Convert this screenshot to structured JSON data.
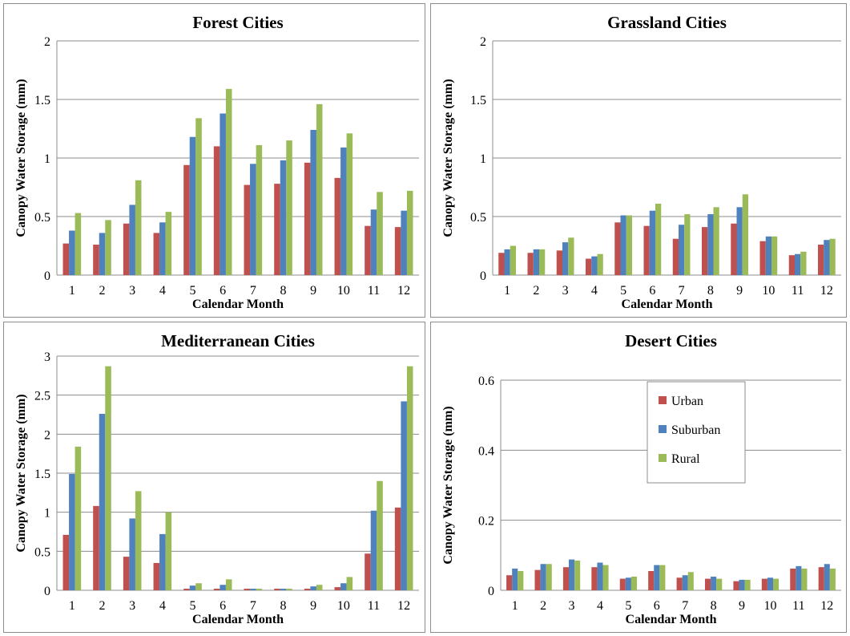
{
  "colors": {
    "urban": "#c0504d",
    "suburban": "#4f81bd",
    "rural": "#9bbb59"
  },
  "legend": [
    {
      "name": "Urban",
      "color": "#c0504d"
    },
    {
      "name": "Suburban",
      "color": "#4f81bd"
    },
    {
      "name": "Rural",
      "color": "#9bbb59"
    }
  ],
  "chart_data": [
    {
      "type": "bar",
      "title": "Forest Cities",
      "xlabel": "Calendar  Month",
      "ylabel": "Canopy  Water Storage (mm)",
      "categories": [
        "1",
        "2",
        "3",
        "4",
        "5",
        "6",
        "7",
        "8",
        "9",
        "10",
        "11",
        "12"
      ],
      "ylim": [
        0,
        2
      ],
      "yticks": [
        "0",
        "0.5",
        "1",
        "1.5",
        "2"
      ],
      "yticks_values": [
        0,
        0.5,
        1,
        1.5,
        2
      ],
      "series": [
        {
          "name": "Urban",
          "values": [
            0.27,
            0.26,
            0.44,
            0.36,
            0.94,
            1.1,
            0.77,
            0.78,
            0.96,
            0.83,
            0.42,
            0.41
          ]
        },
        {
          "name": "Suburban",
          "values": [
            0.38,
            0.36,
            0.6,
            0.45,
            1.18,
            1.38,
            0.95,
            0.98,
            1.24,
            1.09,
            0.56,
            0.55
          ]
        },
        {
          "name": "Rural",
          "values": [
            0.53,
            0.47,
            0.81,
            0.54,
            1.34,
            1.59,
            1.11,
            1.15,
            1.46,
            1.21,
            0.71,
            0.72
          ]
        }
      ],
      "grid": true
    },
    {
      "type": "bar",
      "title": "Grassland Cities",
      "xlabel": "Calendar  Month",
      "ylabel": "Canopy  Water Storage (mm)",
      "categories": [
        "1",
        "2",
        "3",
        "4",
        "5",
        "6",
        "7",
        "8",
        "9",
        "10",
        "11",
        "12"
      ],
      "ylim": [
        0,
        2
      ],
      "yticks": [
        "0",
        "0.5",
        "1",
        "1.5",
        "2"
      ],
      "yticks_values": [
        0,
        0.5,
        1,
        1.5,
        2
      ],
      "series": [
        {
          "name": "Urban",
          "values": [
            0.19,
            0.19,
            0.21,
            0.14,
            0.45,
            0.42,
            0.31,
            0.41,
            0.44,
            0.29,
            0.17,
            0.26
          ]
        },
        {
          "name": "Suburban",
          "values": [
            0.22,
            0.22,
            0.28,
            0.16,
            0.51,
            0.55,
            0.43,
            0.52,
            0.58,
            0.33,
            0.18,
            0.3
          ]
        },
        {
          "name": "Rural",
          "values": [
            0.25,
            0.22,
            0.32,
            0.18,
            0.51,
            0.61,
            0.52,
            0.58,
            0.69,
            0.33,
            0.2,
            0.31
          ]
        }
      ],
      "grid": true
    },
    {
      "type": "bar",
      "title": "Mediterranean Cities",
      "xlabel": "Calendar  Month",
      "ylabel": "Canopy  Water Storage (mm)",
      "categories": [
        "1",
        "2",
        "3",
        "4",
        "5",
        "6",
        "7",
        "8",
        "9",
        "10",
        "11",
        "12"
      ],
      "ylim": [
        0,
        3
      ],
      "yticks": [
        "0",
        "0.5",
        "1",
        "1.5",
        "2",
        "2.5",
        "3"
      ],
      "yticks_values": [
        0,
        0.5,
        1,
        1.5,
        2,
        2.5,
        3
      ],
      "series": [
        {
          "name": "Urban",
          "values": [
            0.71,
            1.08,
            0.43,
            0.35,
            0.02,
            0.02,
            0.02,
            0.02,
            0.02,
            0.04,
            0.47,
            1.06
          ]
        },
        {
          "name": "Suburban",
          "values": [
            1.49,
            2.26,
            0.92,
            0.72,
            0.06,
            0.07,
            0.02,
            0.02,
            0.05,
            0.09,
            1.02,
            2.42
          ]
        },
        {
          "name": "Rural",
          "values": [
            1.84,
            2.87,
            1.27,
            1.0,
            0.09,
            0.14,
            0.02,
            0.02,
            0.07,
            0.17,
            1.4,
            2.87
          ]
        }
      ],
      "grid": true
    },
    {
      "type": "bar",
      "title": "Desert Cities",
      "xlabel": "Calendar  Month",
      "ylabel": "Canopy  Water Storage (mm)",
      "categories": [
        "1",
        "2",
        "3",
        "4",
        "5",
        "6",
        "7",
        "8",
        "9",
        "10",
        "11",
        "12"
      ],
      "ylim": [
        0,
        0.6
      ],
      "yticks": [
        "0",
        "0.2",
        "0.4",
        "0.6"
      ],
      "yticks_values": [
        0,
        0.2,
        0.4,
        0.6
      ],
      "series": [
        {
          "name": "Urban",
          "values": [
            0.043,
            0.058,
            0.066,
            0.066,
            0.033,
            0.055,
            0.036,
            0.033,
            0.026,
            0.033,
            0.062,
            0.066
          ]
        },
        {
          "name": "Suburban",
          "values": [
            0.062,
            0.075,
            0.088,
            0.079,
            0.036,
            0.072,
            0.043,
            0.039,
            0.03,
            0.036,
            0.069,
            0.075
          ]
        },
        {
          "name": "Rural",
          "values": [
            0.055,
            0.075,
            0.085,
            0.072,
            0.039,
            0.072,
            0.052,
            0.033,
            0.03,
            0.033,
            0.062,
            0.062
          ]
        }
      ],
      "grid": true,
      "legend_position": "top-right"
    }
  ]
}
